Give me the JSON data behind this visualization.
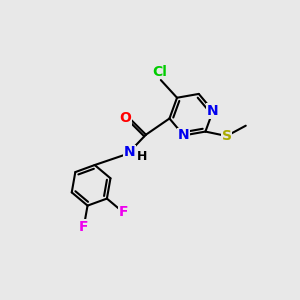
{
  "background_color": "#e8e8e8",
  "bond_color": "#000000",
  "bond_width": 1.5,
  "atom_colors": {
    "Cl": "#00cc00",
    "N": "#0000ee",
    "O": "#ff0000",
    "S": "#aaaa00",
    "F": "#ee00ee",
    "C": "#000000",
    "H": "#000000"
  },
  "figsize": [
    3.0,
    3.0
  ],
  "dpi": 100
}
